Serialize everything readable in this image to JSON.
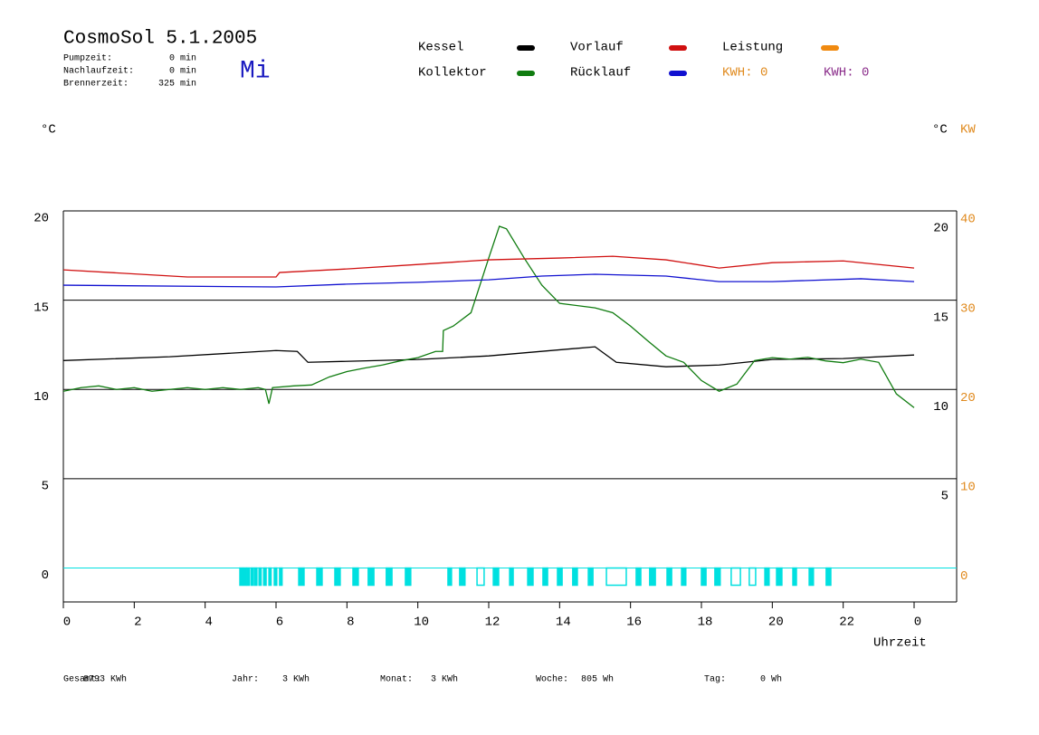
{
  "header": {
    "title": "CosmoSol 5.1.2005",
    "day": "Mi",
    "times": [
      {
        "label": "Pumpzeit:",
        "value": "0 min"
      },
      {
        "label": "Nachlaufzeit:",
        "value": "0 min"
      },
      {
        "label": "Brennerzeit:",
        "value": "325 min"
      }
    ],
    "kwh": [
      {
        "text": "KWH: 0",
        "color": "#e08a1e"
      },
      {
        "text": "KWH: 0",
        "color": "#8a2c8a"
      }
    ]
  },
  "chart_data": {
    "type": "line",
    "ylabel": "°C",
    "y2label": "°C",
    "y3label": "KW",
    "xlabel": "Uhrzeit",
    "xlim": [
      0,
      25.2
    ],
    "xticks": [
      0,
      2,
      4,
      6,
      8,
      10,
      12,
      14,
      16,
      18,
      20,
      22,
      {
        "value": 24,
        "label": "0"
      }
    ],
    "ylim": [
      -1.9,
      20
    ],
    "yticks": [
      0,
      5,
      10,
      15,
      20
    ],
    "y2lim": [
      -1.9,
      20
    ],
    "y2ticks": [
      5,
      10,
      15,
      20
    ],
    "y3lim": [
      -3.8,
      40
    ],
    "y3ticks": [
      0,
      10,
      20,
      30,
      40
    ],
    "y3color": "#e08a1e",
    "series": [
      {
        "name": "Kessel",
        "color": "#000000",
        "x": [
          0,
          3,
          6,
          6.6,
          6.9,
          10,
          12,
          15,
          15.6,
          17,
          18.5,
          20,
          22,
          24
        ],
        "values": [
          11.62,
          11.83,
          12.18,
          12.13,
          11.52,
          11.68,
          11.88,
          12.39,
          11.52,
          11.27,
          11.37,
          11.68,
          11.73,
          11.93
        ]
      },
      {
        "name": "Kollektor",
        "color": "#107c10",
        "x": [
          0,
          0.5,
          1,
          1.5,
          2,
          2.5,
          3,
          3.5,
          4,
          4.5,
          5,
          5.5,
          5.7,
          5.8,
          5.9,
          6.5,
          7,
          7.5,
          8,
          8.5,
          9,
          9.5,
          10,
          10.5,
          10.7,
          10.72,
          11,
          11.5,
          12,
          12.3,
          12.5,
          13,
          13.5,
          14,
          15,
          15.5,
          16,
          16.5,
          17,
          17.5,
          18,
          18.5,
          19,
          19.5,
          20,
          20.5,
          21,
          21.5,
          22,
          22.5,
          23,
          23.5,
          24
        ],
        "values": [
          9.9,
          10.1,
          10.2,
          10.0,
          10.1,
          9.9,
          10.0,
          10.1,
          10.0,
          10.1,
          10.0,
          10.1,
          10.0,
          9.2,
          10.1,
          10.2,
          10.25,
          10.7,
          11.0,
          11.2,
          11.37,
          11.6,
          11.78,
          12.13,
          12.13,
          13.3,
          13.55,
          14.3,
          17.36,
          19.14,
          19.0,
          17.36,
          15.84,
          14.82,
          14.57,
          14.3,
          13.55,
          12.7,
          11.88,
          11.52,
          10.5,
          9.9,
          10.3,
          11.62,
          11.78,
          11.7,
          11.8,
          11.6,
          11.5,
          11.7,
          11.52,
          9.75,
          8.98
        ]
      },
      {
        "name": "Vorlauf",
        "color": "#d01010",
        "x": [
          0,
          3.5,
          6,
          6.1,
          8,
          10,
          12,
          14,
          15.5,
          17,
          18.5,
          20,
          22,
          24
        ],
        "values": [
          16.7,
          16.3,
          16.3,
          16.55,
          16.75,
          17.0,
          17.26,
          17.36,
          17.46,
          17.26,
          16.8,
          17.1,
          17.2,
          16.8
        ]
      },
      {
        "name": "Rücklauf",
        "color": "#1010d0",
        "x": [
          0,
          6,
          8,
          10,
          12,
          13.5,
          15,
          17,
          18.5,
          20,
          22.5,
          24
        ],
        "values": [
          15.84,
          15.74,
          15.9,
          16.0,
          16.14,
          16.35,
          16.45,
          16.35,
          16.04,
          16.04,
          16.2,
          16.04
        ]
      },
      {
        "name": "Leistung",
        "color": "#f08a10",
        "x": [],
        "values": []
      }
    ],
    "pump": {
      "color": "#00e0e0",
      "intervals": [
        [
          4.98,
          5.05
        ],
        [
          5.08,
          5.15
        ],
        [
          5.18,
          5.25
        ],
        [
          5.3,
          5.36
        ],
        [
          5.4,
          5.46
        ],
        [
          5.52,
          5.58
        ],
        [
          5.65,
          5.72
        ],
        [
          5.8,
          5.86
        ],
        [
          5.95,
          6.02
        ],
        [
          6.1,
          6.17
        ],
        [
          6.64,
          6.79
        ],
        [
          7.15,
          7.3
        ],
        [
          7.66,
          7.81
        ],
        [
          8.17,
          8.32
        ],
        [
          8.6,
          8.76
        ],
        [
          9.11,
          9.27
        ],
        [
          9.65,
          9.8
        ],
        [
          10.85,
          10.95
        ],
        [
          11.18,
          11.33
        ],
        [
          11.67,
          11.87
        ],
        [
          12.13,
          12.28
        ],
        [
          12.59,
          12.69
        ],
        [
          13.1,
          13.25
        ],
        [
          13.53,
          13.66
        ],
        [
          13.94,
          14.07
        ],
        [
          14.37,
          14.5
        ],
        [
          14.81,
          14.94
        ],
        [
          15.32,
          15.88
        ],
        [
          16.16,
          16.29
        ],
        [
          16.54,
          16.7
        ],
        [
          17.03,
          17.16
        ],
        [
          17.44,
          17.56
        ],
        [
          18.0,
          18.13
        ],
        [
          18.38,
          18.53
        ],
        [
          18.84,
          19.1
        ],
        [
          19.35,
          19.53
        ],
        [
          19.79,
          19.91
        ],
        [
          20.12,
          20.27
        ],
        [
          20.58,
          20.68
        ],
        [
          21.04,
          21.16
        ],
        [
          21.52,
          21.65
        ]
      ]
    }
  },
  "footer": [
    {
      "label": "Gesamt:",
      "value": "8793 KWh"
    },
    {
      "label": "Jahr:",
      "value": "3 KWh"
    },
    {
      "label": "Monat:",
      "value": "3 KWh"
    },
    {
      "label": "Woche:",
      "value": "805 Wh"
    },
    {
      "label": "Tag:",
      "value": "0 Wh"
    }
  ]
}
